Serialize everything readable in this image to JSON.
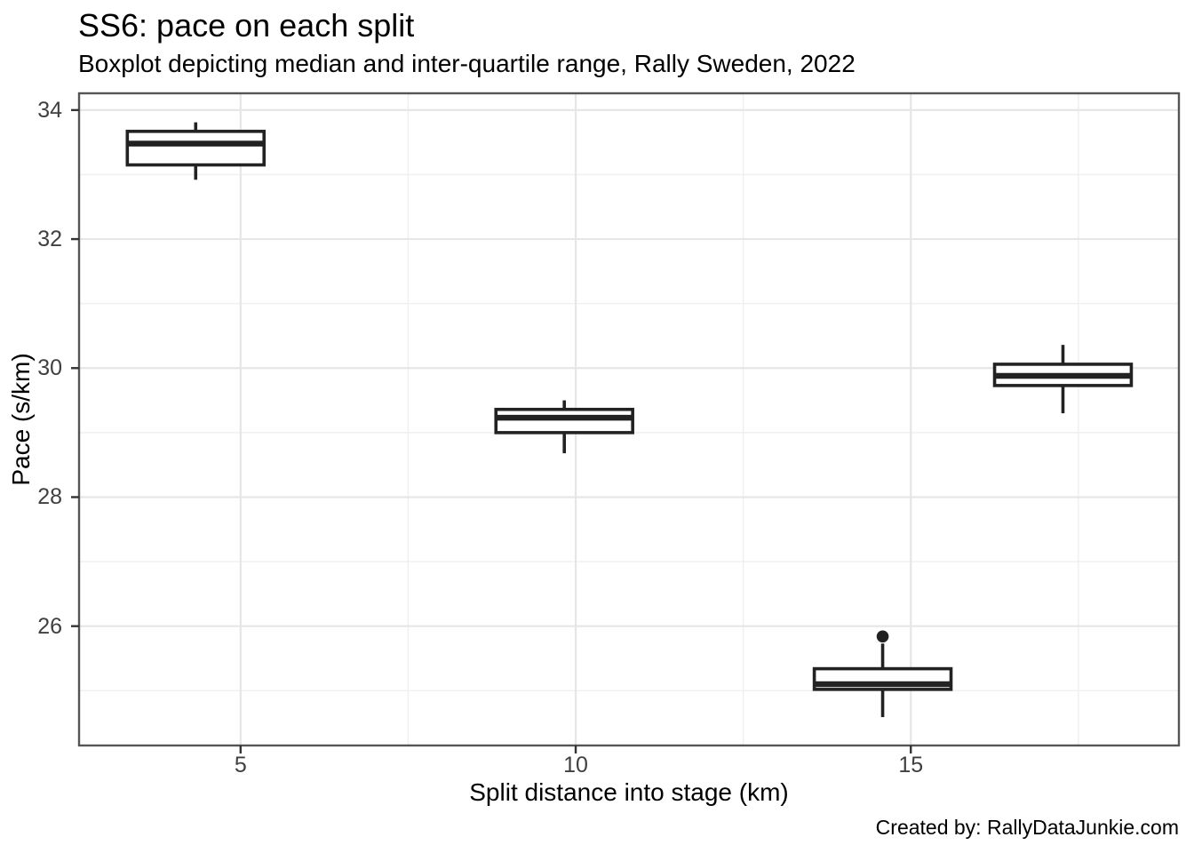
{
  "caption": "Created by: RallyDataJunkie.com",
  "chart_data": {
    "type": "boxplot",
    "title": "SS6: pace on each split",
    "subtitle": "Boxplot depicting median and inter-quartile range, Rally Sweden, 2022",
    "xlabel": "Split distance into stage (km)",
    "ylabel": "Pace (s/km)",
    "x_domain": [
      2.59,
      19.0
    ],
    "y_domain": [
      24.15,
      34.26
    ],
    "x_major_ticks": [
      5,
      10,
      15
    ],
    "x_minor_gridlines": [
      7.5,
      12.5,
      17.5
    ],
    "y_major_ticks": [
      26,
      28,
      30,
      32,
      34
    ],
    "y_minor_gridlines": [
      25,
      27,
      29,
      31,
      33
    ],
    "grid": "on",
    "legend": "none",
    "box_half_width_km": 1.02,
    "boxes": [
      {
        "split_km": 4.33,
        "whisker_low": 32.92,
        "q1": 33.15,
        "median": 33.48,
        "q3": 33.67,
        "whisker_high": 33.81,
        "outliers": []
      },
      {
        "split_km": 9.83,
        "whisker_low": 28.68,
        "q1": 29.0,
        "median": 29.23,
        "q3": 29.36,
        "whisker_high": 29.5,
        "outliers": []
      },
      {
        "split_km": 14.58,
        "whisker_low": 24.59,
        "q1": 25.02,
        "median": 25.1,
        "q3": 25.34,
        "whisker_high": 25.73,
        "outliers": [
          25.84
        ]
      },
      {
        "split_km": 17.27,
        "whisker_low": 29.3,
        "q1": 29.73,
        "median": 29.88,
        "q3": 30.06,
        "whisker_high": 30.36,
        "outliers": []
      }
    ],
    "colors": {
      "background": "#ffffff",
      "panel_fill": "#ffffff",
      "panel_border": "#555555",
      "grid_major": "#e6e6e6",
      "grid_minor": "#efefef",
      "axis_tick": "#333333",
      "tick_label": "#404040",
      "box_stroke": "#222222",
      "box_fill": "#ffffff",
      "outlier_fill": "#222222",
      "text": "#000000"
    }
  }
}
